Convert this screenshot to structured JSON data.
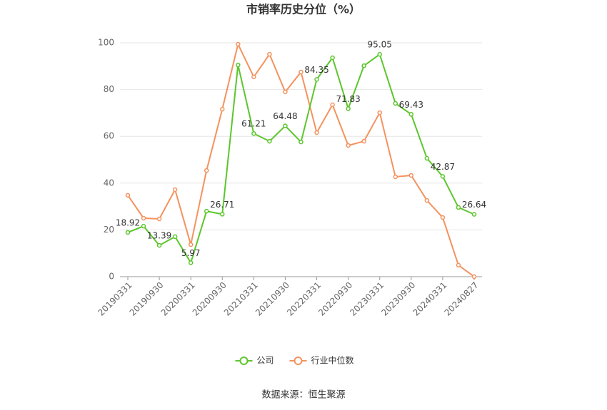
{
  "chart_data": {
    "type": "line",
    "title": "市销率历史分位（%）",
    "categories": [
      "20190331",
      null,
      "20190930",
      null,
      "20200331",
      null,
      "20200930",
      null,
      "20210331",
      null,
      "20210930",
      null,
      "20220331",
      null,
      "20220930",
      null,
      "20230331",
      null,
      "20230930",
      null,
      "20240331",
      null,
      "20240827"
    ],
    "series": [
      {
        "name": "公司",
        "color": "#5cc62c",
        "values": [
          18.92,
          21.6,
          13.39,
          17.1,
          5.97,
          28.0,
          26.71,
          90.5,
          61.21,
          57.9,
          64.48,
          57.6,
          84.35,
          93.6,
          71.83,
          90.2,
          95.05,
          74.1,
          69.43,
          50.6,
          42.87,
          29.6,
          26.64
        ]
      },
      {
        "name": "行业中位数",
        "color": "#f4925e",
        "values": [
          34.8,
          25.0,
          24.7,
          37.2,
          13.7,
          45.4,
          71.6,
          99.4,
          85.4,
          95.1,
          79.0,
          87.5,
          61.6,
          73.5,
          56.1,
          57.9,
          70.1,
          42.7,
          43.3,
          32.6,
          25.3,
          4.9,
          0.0
        ]
      }
    ],
    "ylim": [
      0,
      100
    ],
    "yticks": [
      0,
      20,
      40,
      60,
      80,
      100
    ],
    "grid": true,
    "legend": "bottom",
    "source": "数据来源：恒生聚源"
  }
}
